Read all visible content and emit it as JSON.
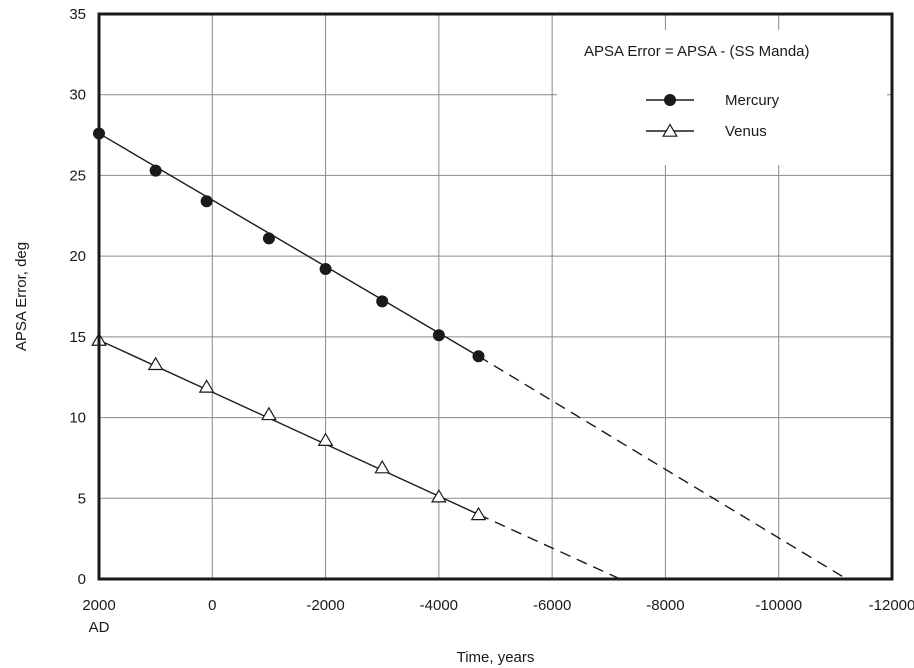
{
  "chart_data": {
    "type": "line",
    "title": "",
    "xlabel": "Time, years",
    "ylabel": "APSA Error, deg",
    "xlim": [
      2000,
      -12000
    ],
    "ylim": [
      0,
      35
    ],
    "x_reversed": true,
    "xticks": [
      2000,
      0,
      -2000,
      -4000,
      -6000,
      -8000,
      -10000,
      -12000
    ],
    "xtick_labels": [
      "2000",
      "0",
      "-2000",
      "-4000",
      "-6000",
      "-8000",
      "-10000",
      "-12000"
    ],
    "x_first_tick_sublabel": "AD",
    "yticks": [
      0,
      5,
      10,
      15,
      20,
      25,
      30,
      35
    ],
    "ytick_labels": [
      "0",
      "5",
      "10",
      "15",
      "20",
      "25",
      "30",
      "35"
    ],
    "grid": true,
    "annotation": "APSA Error = APSA - (SS Manda)",
    "legend_position": "top-right",
    "series": [
      {
        "name": "Mercury",
        "marker": "filled-circle",
        "x": [
          2000,
          1000,
          100,
          -1000,
          -2000,
          -3000,
          -4000,
          -4700
        ],
        "y": [
          27.6,
          25.3,
          23.4,
          21.1,
          19.2,
          17.2,
          15.1,
          13.8
        ],
        "fit": {
          "x": [
            2000,
            -4700
          ],
          "y": [
            27.6,
            13.8
          ]
        },
        "extrapolation": {
          "x": [
            -4700,
            -11200
          ],
          "y": [
            13.8,
            0
          ]
        }
      },
      {
        "name": "Venus",
        "marker": "open-triangle",
        "x": [
          2000,
          1000,
          100,
          -1000,
          -2000,
          -3000,
          -4000,
          -4700
        ],
        "y": [
          14.8,
          13.3,
          11.9,
          10.2,
          8.6,
          6.9,
          5.1,
          4.0
        ],
        "fit": {
          "x": [
            2000,
            -4700
          ],
          "y": [
            14.8,
            4.0
          ]
        },
        "extrapolation": {
          "x": [
            -4700,
            -7200
          ],
          "y": [
            4.0,
            0
          ]
        }
      }
    ]
  }
}
